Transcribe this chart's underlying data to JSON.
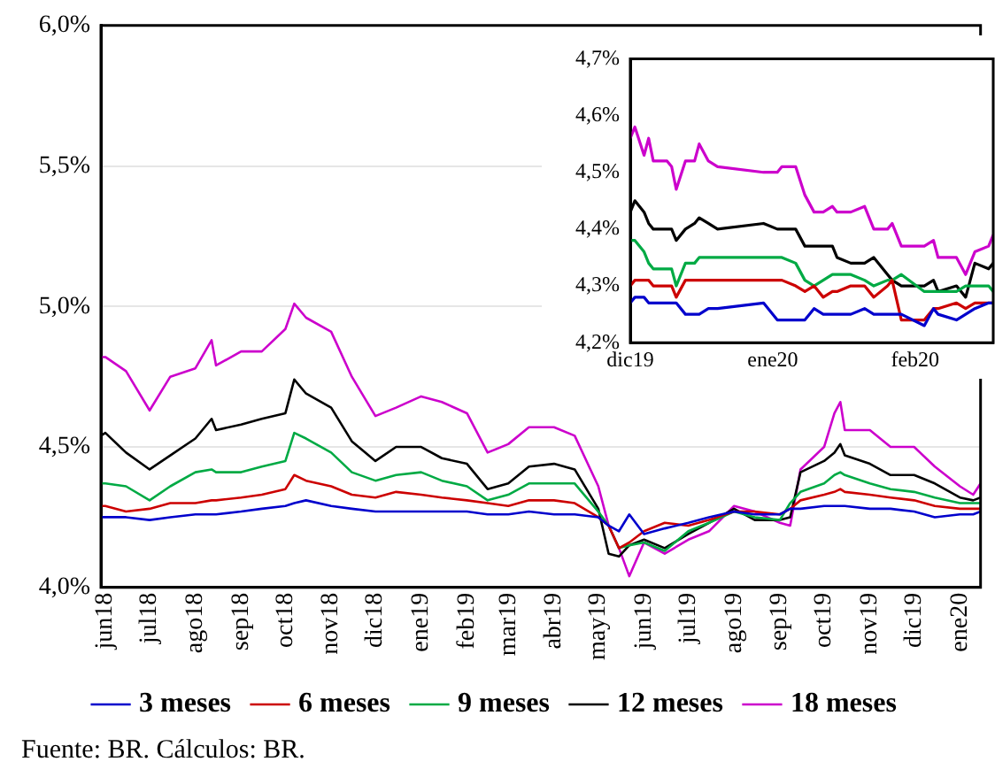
{
  "chart_data": [
    {
      "type": "line",
      "xlim": [
        "2018-05-29",
        "2020-01-15"
      ],
      "ylim": [
        4.0,
        6.0
      ],
      "yticks": [
        {
          "value": 4.0,
          "label": "4,0%"
        },
        {
          "value": 4.5,
          "label": "4,5%"
        },
        {
          "value": 5.0,
          "label": "5,0%"
        },
        {
          "value": 5.5,
          "label": "5,5%"
        },
        {
          "value": 6.0,
          "label": "6,0%"
        }
      ],
      "xticks": [
        {
          "value": "2018-06-01",
          "label": "jun18"
        },
        {
          "value": "2018-07-01",
          "label": "jul18"
        },
        {
          "value": "2018-08-01",
          "label": "ago18"
        },
        {
          "value": "2018-09-01",
          "label": "sep18"
        },
        {
          "value": "2018-10-01",
          "label": "oct18"
        },
        {
          "value": "2018-11-01",
          "label": "nov18"
        },
        {
          "value": "2018-12-01",
          "label": "dic18"
        },
        {
          "value": "2019-01-01",
          "label": "ene19"
        },
        {
          "value": "2019-02-01",
          "label": "feb19"
        },
        {
          "value": "2019-03-01",
          "label": "mar19"
        },
        {
          "value": "2019-04-01",
          "label": "abr19"
        },
        {
          "value": "2019-05-01",
          "label": "may19"
        },
        {
          "value": "2019-06-01",
          "label": "jun19"
        },
        {
          "value": "2019-07-01",
          "label": "jul19"
        },
        {
          "value": "2019-08-01",
          "label": "ago19"
        },
        {
          "value": "2019-09-01",
          "label": "sep19"
        },
        {
          "value": "2019-10-01",
          "label": "oct19"
        },
        {
          "value": "2019-11-01",
          "label": "nov19"
        },
        {
          "value": "2019-12-01",
          "label": "dic19"
        },
        {
          "value": "2020-01-01",
          "label": "ene20"
        }
      ],
      "grid": "y",
      "legend": "bottom",
      "annotations": [
        "Fuente: BR. Cálculos: BR."
      ],
      "x": [
        "2018-05-29",
        "2018-06-01",
        "2018-06-15",
        "2018-07-01",
        "2018-07-15",
        "2018-08-01",
        "2018-08-12",
        "2018-08-15",
        "2018-09-01",
        "2018-09-15",
        "2018-10-01",
        "2018-10-07",
        "2018-10-15",
        "2018-11-01",
        "2018-11-15",
        "2018-12-01",
        "2018-12-15",
        "2019-01-01",
        "2019-01-15",
        "2019-02-01",
        "2019-02-15",
        "2019-03-01",
        "2019-03-15",
        "2019-04-01",
        "2019-04-15",
        "2019-05-01",
        "2019-05-08",
        "2019-05-15",
        "2019-05-22",
        "2019-06-01",
        "2019-06-15",
        "2019-07-01",
        "2019-07-15",
        "2019-08-01",
        "2019-08-15",
        "2019-09-01",
        "2019-09-08",
        "2019-09-15",
        "2019-10-01",
        "2019-10-08",
        "2019-10-12",
        "2019-10-15",
        "2019-11-01",
        "2019-11-15",
        "2019-12-01",
        "2019-12-15",
        "2020-01-01",
        "2020-01-10",
        "2020-01-15"
      ],
      "series": [
        {
          "name": "3 meses",
          "color": "#0000cc",
          "values": [
            4.25,
            4.25,
            4.25,
            4.24,
            4.25,
            4.26,
            4.26,
            4.26,
            4.27,
            4.28,
            4.29,
            4.3,
            4.31,
            4.29,
            4.28,
            4.27,
            4.27,
            4.27,
            4.27,
            4.27,
            4.26,
            4.26,
            4.27,
            4.26,
            4.26,
            4.25,
            4.22,
            4.2,
            4.26,
            4.19,
            4.21,
            4.23,
            4.25,
            4.27,
            4.26,
            4.26,
            4.28,
            4.28,
            4.29,
            4.29,
            4.29,
            4.29,
            4.28,
            4.28,
            4.27,
            4.25,
            4.26,
            4.26,
            4.27
          ]
        },
        {
          "name": "6 meses",
          "color": "#cc0000",
          "values": [
            4.29,
            4.29,
            4.27,
            4.28,
            4.3,
            4.3,
            4.31,
            4.31,
            4.32,
            4.33,
            4.35,
            4.4,
            4.38,
            4.36,
            4.33,
            4.32,
            4.34,
            4.33,
            4.32,
            4.31,
            4.3,
            4.29,
            4.31,
            4.31,
            4.3,
            4.25,
            4.22,
            4.14,
            4.16,
            4.2,
            4.23,
            4.22,
            4.24,
            4.27,
            4.27,
            4.26,
            4.28,
            4.31,
            4.33,
            4.34,
            4.35,
            4.34,
            4.33,
            4.32,
            4.31,
            4.29,
            4.28,
            4.28,
            4.28
          ]
        },
        {
          "name": "9 meses",
          "color": "#00aa44",
          "values": [
            4.37,
            4.37,
            4.36,
            4.31,
            4.36,
            4.41,
            4.42,
            4.41,
            4.41,
            4.43,
            4.45,
            4.55,
            4.53,
            4.48,
            4.41,
            4.38,
            4.4,
            4.41,
            4.38,
            4.36,
            4.31,
            4.33,
            4.37,
            4.37,
            4.37,
            4.27,
            4.22,
            4.14,
            4.15,
            4.16,
            4.13,
            4.2,
            4.23,
            4.27,
            4.25,
            4.24,
            4.3,
            4.34,
            4.37,
            4.4,
            4.41,
            4.4,
            4.37,
            4.35,
            4.34,
            4.32,
            4.3,
            4.3,
            4.3
          ]
        },
        {
          "name": "12 meses",
          "color": "#000000",
          "values": [
            4.54,
            4.55,
            4.48,
            4.42,
            4.47,
            4.53,
            4.6,
            4.56,
            4.58,
            4.6,
            4.62,
            4.74,
            4.69,
            4.64,
            4.52,
            4.45,
            4.5,
            4.5,
            4.46,
            4.44,
            4.35,
            4.37,
            4.43,
            4.44,
            4.42,
            4.28,
            4.12,
            4.11,
            4.15,
            4.17,
            4.14,
            4.19,
            4.23,
            4.28,
            4.24,
            4.24,
            4.25,
            4.41,
            4.45,
            4.48,
            4.51,
            4.47,
            4.44,
            4.4,
            4.4,
            4.37,
            4.32,
            4.31,
            4.32
          ]
        },
        {
          "name": "18 meses",
          "color": "#cc00cc",
          "values": [
            4.82,
            4.82,
            4.77,
            4.63,
            4.75,
            4.78,
            4.88,
            4.79,
            4.84,
            4.84,
            4.92,
            5.01,
            4.96,
            4.91,
            4.75,
            4.61,
            4.64,
            4.68,
            4.66,
            4.62,
            4.48,
            4.51,
            4.57,
            4.57,
            4.54,
            4.36,
            4.22,
            4.14,
            4.04,
            4.16,
            4.12,
            4.17,
            4.2,
            4.29,
            4.27,
            4.23,
            4.22,
            4.42,
            4.5,
            4.62,
            4.66,
            4.56,
            4.56,
            4.5,
            4.5,
            4.43,
            4.36,
            4.33,
            4.37
          ]
        }
      ]
    },
    {
      "type": "line",
      "xlim": [
        "2019-12-01",
        "2020-02-18"
      ],
      "ylim": [
        4.2,
        4.7
      ],
      "yticks": [
        {
          "value": 4.2,
          "label": "4,2%"
        },
        {
          "value": 4.3,
          "label": "4,3%"
        },
        {
          "value": 4.4,
          "label": "4,4%"
        },
        {
          "value": 4.5,
          "label": "4,5%"
        },
        {
          "value": 4.6,
          "label": "4,6%"
        },
        {
          "value": 4.7,
          "label": "4,7%"
        }
      ],
      "xticks": [
        {
          "value": "2019-12-01",
          "label": "dic19"
        },
        {
          "value": "2020-01-01",
          "label": "ene20"
        },
        {
          "value": "2020-02-01",
          "label": "feb20"
        }
      ],
      "x": [
        "2019-12-01",
        "2019-12-02",
        "2019-12-04",
        "2019-12-05",
        "2019-12-06",
        "2019-12-09",
        "2019-12-10",
        "2019-12-11",
        "2019-12-13",
        "2019-12-15",
        "2019-12-16",
        "2019-12-18",
        "2019-12-20",
        "2019-12-30",
        "2020-01-02",
        "2020-01-03",
        "2020-01-06",
        "2020-01-08",
        "2020-01-10",
        "2020-01-12",
        "2020-01-14",
        "2020-01-15",
        "2020-01-18",
        "2020-01-21",
        "2020-01-23",
        "2020-01-26",
        "2020-01-27",
        "2020-01-29",
        "2020-02-03",
        "2020-02-05",
        "2020-02-06",
        "2020-02-10",
        "2020-02-12",
        "2020-02-14",
        "2020-02-17",
        "2020-02-18"
      ],
      "series": [
        {
          "color": "#0000cc",
          "values": [
            4.27,
            4.28,
            4.28,
            4.27,
            4.27,
            4.27,
            4.27,
            4.27,
            4.25,
            4.25,
            4.25,
            4.26,
            4.26,
            4.27,
            4.24,
            4.24,
            4.24,
            4.24,
            4.26,
            4.25,
            4.25,
            4.25,
            4.25,
            4.26,
            4.25,
            4.25,
            4.25,
            4.25,
            4.23,
            4.26,
            4.25,
            4.24,
            4.25,
            4.26,
            4.27,
            4.27
          ]
        },
        {
          "color": "#cc0000",
          "values": [
            4.3,
            4.31,
            4.31,
            4.31,
            4.3,
            4.3,
            4.3,
            4.28,
            4.31,
            4.31,
            4.31,
            4.31,
            4.31,
            4.31,
            4.31,
            4.31,
            4.3,
            4.29,
            4.3,
            4.28,
            4.29,
            4.29,
            4.3,
            4.3,
            4.28,
            4.3,
            4.31,
            4.24,
            4.24,
            4.26,
            4.26,
            4.27,
            4.26,
            4.27,
            4.27,
            4.27
          ]
        },
        {
          "color": "#00aa44",
          "values": [
            4.38,
            4.38,
            4.36,
            4.34,
            4.33,
            4.33,
            4.33,
            4.3,
            4.34,
            4.34,
            4.35,
            4.35,
            4.35,
            4.35,
            4.35,
            4.35,
            4.34,
            4.31,
            4.3,
            4.31,
            4.32,
            4.32,
            4.32,
            4.31,
            4.3,
            4.31,
            4.31,
            4.32,
            4.29,
            4.29,
            4.29,
            4.29,
            4.3,
            4.3,
            4.3,
            4.29
          ]
        },
        {
          "color": "#000000",
          "values": [
            4.43,
            4.45,
            4.43,
            4.41,
            4.4,
            4.4,
            4.4,
            4.38,
            4.4,
            4.41,
            4.42,
            4.41,
            4.4,
            4.41,
            4.4,
            4.4,
            4.4,
            4.37,
            4.37,
            4.37,
            4.37,
            4.35,
            4.34,
            4.34,
            4.35,
            4.32,
            4.31,
            4.3,
            4.3,
            4.31,
            4.29,
            4.3,
            4.28,
            4.34,
            4.33,
            4.34
          ]
        },
        {
          "color": "#cc00cc",
          "values": [
            4.56,
            4.58,
            4.53,
            4.56,
            4.52,
            4.52,
            4.51,
            4.47,
            4.52,
            4.52,
            4.55,
            4.52,
            4.51,
            4.5,
            4.5,
            4.51,
            4.51,
            4.46,
            4.43,
            4.43,
            4.44,
            4.43,
            4.43,
            4.44,
            4.4,
            4.4,
            4.41,
            4.37,
            4.37,
            4.38,
            4.35,
            4.35,
            4.32,
            4.36,
            4.37,
            4.39
          ]
        }
      ]
    }
  ]
}
